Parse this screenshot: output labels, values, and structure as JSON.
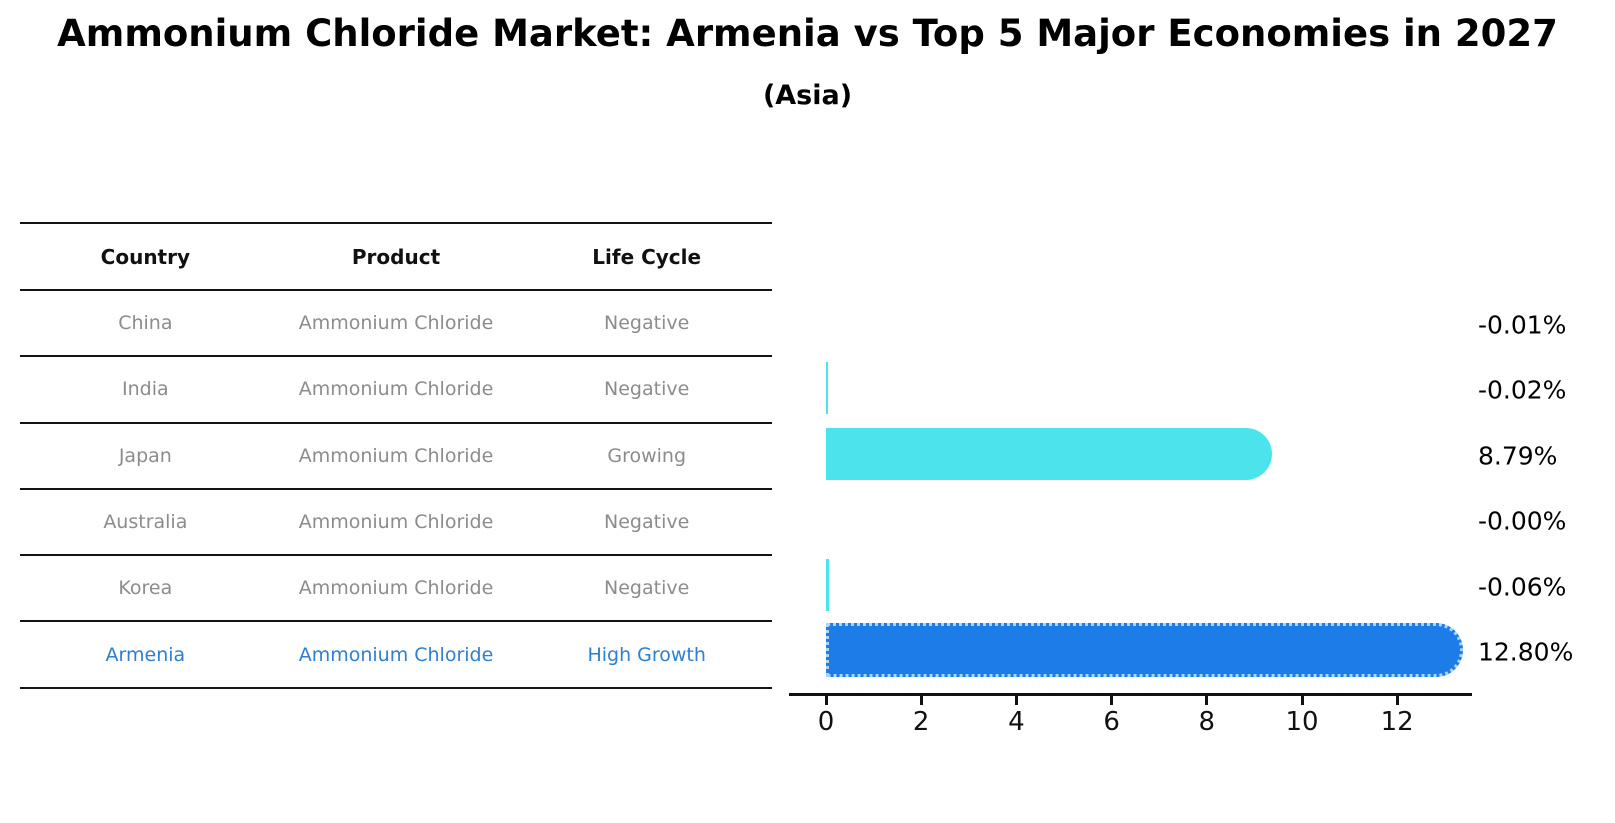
{
  "title": "Ammonium Chloride Market: Armenia vs Top 5 Major Economies in 2027",
  "subtitle": "(Asia)",
  "table": {
    "headers": [
      "Country",
      "Product",
      "Life Cycle"
    ],
    "rows": [
      {
        "country": "China",
        "product": "Ammonium Chloride",
        "life_cycle": "Negative",
        "highlight": false
      },
      {
        "country": "India",
        "product": "Ammonium Chloride",
        "life_cycle": "Negative",
        "highlight": false
      },
      {
        "country": "Japan",
        "product": "Ammonium Chloride",
        "life_cycle": "Growing",
        "highlight": false
      },
      {
        "country": "Australia",
        "product": "Ammonium Chloride",
        "life_cycle": "Negative",
        "highlight": false
      },
      {
        "country": "Korea",
        "product": "Ammonium Chloride",
        "life_cycle": "Negative",
        "highlight": false
      },
      {
        "country": "Armenia",
        "product": "Ammonium Chloride",
        "life_cycle": "High Growth",
        "highlight": true
      }
    ]
  },
  "chart_data": {
    "type": "bar",
    "orientation": "horizontal",
    "categories": [
      "China",
      "India",
      "Japan",
      "Australia",
      "Korea",
      "Armenia"
    ],
    "values": [
      -0.01,
      -0.02,
      8.79,
      -0.0,
      -0.06,
      12.8
    ],
    "value_labels": [
      "-0.01%",
      "-0.02%",
      "8.79%",
      "-0.00%",
      "-0.06%",
      "12.80%"
    ],
    "highlight_index": 5,
    "x_ticks": [
      0,
      2,
      4,
      6,
      8,
      10,
      12
    ],
    "xlim": [
      0,
      13.5
    ],
    "grid": false,
    "legend": "none",
    "xlabel": "",
    "ylabel": ""
  },
  "colors": {
    "bar_default": "#4be4ec",
    "bar_highlight": "#1e7ce8",
    "highlight_text": "#2e7fd0",
    "row_text": "#8c8c8c",
    "header_text": "#111111",
    "axis": "#111111",
    "background": "#ffffff"
  }
}
